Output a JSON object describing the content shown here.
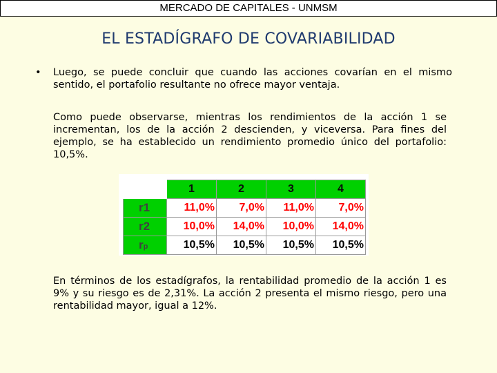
{
  "header": {
    "text": "MERCADO DE CAPITALES - UNMSM"
  },
  "title": "EL ESTADÍGRAFO DE COVARIABILIDAD",
  "bullet": {
    "symbol": "•",
    "text": "Luego, se puede concluir que cuando las acciones covarían en el mismo sentido, el portafolio resultante no ofrece mayor ventaja."
  },
  "paragraph1": "Como puede observarse, mientras los rendimientos de la acción 1 se incrementan, los de la acción 2 descienden, y viceversa. Para fines del ejemplo, se ha establecido un rendimiento promedio único del portafolio: 10,5%.",
  "table": {
    "columns": [
      "1",
      "2",
      "3",
      "4"
    ],
    "rows": [
      {
        "label": "r1",
        "values": [
          "11,0%",
          "7,0%",
          "11,0%",
          "7,0%"
        ],
        "color": "#ff0000"
      },
      {
        "label": "r2",
        "values": [
          "10,0%",
          "14,0%",
          "10,0%",
          "14,0%"
        ],
        "color": "#ff0000"
      },
      {
        "label_main": "r",
        "label_sub": "p",
        "values": [
          "10,5%",
          "10,5%",
          "10,5%",
          "10,5%"
        ],
        "color": "#000000"
      }
    ]
  },
  "paragraph2": "En términos de los estadígrafos, la rentabilidad promedio de la acción 1 es 9% y su riesgo es de 2,31%. La acción 2 presenta el mismo riesgo, pero una rentabilidad mayor, igual a 12%."
}
